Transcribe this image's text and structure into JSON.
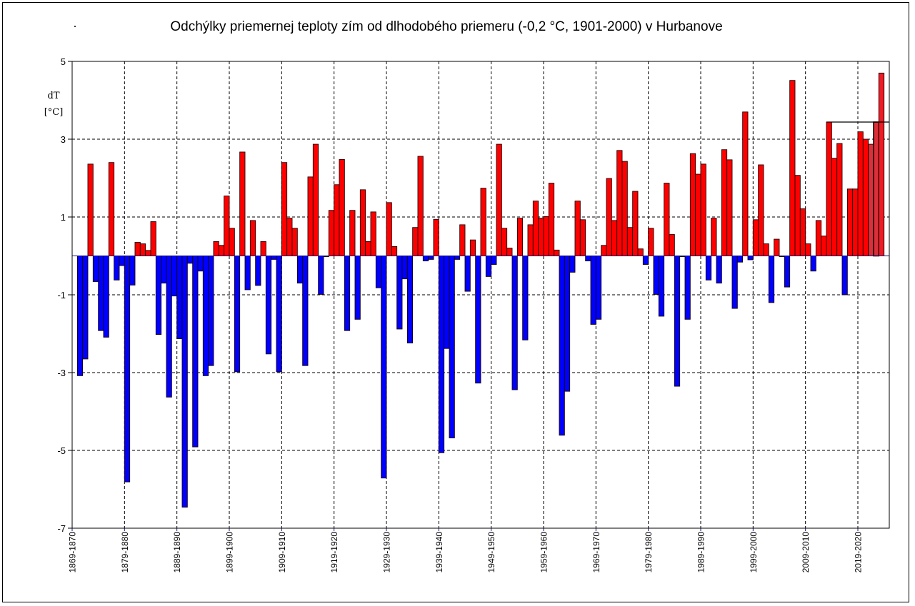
{
  "chart_data": {
    "type": "bar",
    "title": "Odchýlky priemernej teploty zím od dlhodobého priemeru (-0,2 °C, 1901-2000) v Hurbanove",
    "ylabel": "dT",
    "yunit": "[°C]",
    "xlabel": "",
    "ylim": [
      -7,
      5
    ],
    "yticks": [
      5,
      3,
      1,
      -1,
      -3,
      -5,
      -7
    ],
    "ytick_labels": [
      "5",
      "3",
      "1",
      "-1",
      "-3",
      "-5",
      "-7"
    ],
    "grid": true,
    "xtick_labels": [
      "1869-1870",
      "1879-1880",
      "1889-1890",
      "1899-1900",
      "1909-1910",
      "1919-1920",
      "1929-1930",
      "1939-1940",
      "1949-1950",
      "1959-1960",
      "1969-1970",
      "1979-1980",
      "1989-1990",
      "1999-2000",
      "2009-2010",
      "2019-2020"
    ],
    "first_winter_start_year": 1869,
    "colors": {
      "positive": "#ff0000",
      "negative": "#0000ff",
      "highlight": "#d9303a",
      "latest": "#ee1c25"
    },
    "reference_line_value": 3.44,
    "values": [
      -3.08,
      -2.65,
      2.36,
      -0.66,
      -1.92,
      -2.09,
      2.4,
      -0.62,
      -0.25,
      -5.81,
      -0.75,
      0.35,
      0.31,
      0.14,
      0.88,
      -2.02,
      -0.7,
      -3.63,
      -1.03,
      -2.13,
      -6.46,
      -0.19,
      -4.91,
      -0.39,
      -3.08,
      -2.82,
      0.37,
      0.27,
      1.54,
      0.71,
      -2.98,
      2.67,
      -0.87,
      0.91,
      -0.76,
      0.37,
      -2.52,
      -0.09,
      -2.98,
      2.4,
      0.97,
      0.71,
      -0.7,
      -2.82,
      2.03,
      2.87,
      -0.99,
      -0.02,
      1.17,
      1.83,
      2.48,
      -1.92,
      1.17,
      -1.63,
      1.7,
      0.37,
      1.13,
      -0.82,
      -5.71,
      1.37,
      0.24,
      -1.88,
      -0.59,
      -2.24,
      0.73,
      2.56,
      -0.13,
      -0.09,
      0.94,
      -5.06,
      -2.38,
      -4.68,
      -0.09,
      0.8,
      -0.91,
      0.41,
      -3.27,
      1.74,
      -0.53,
      -0.22,
      2.87,
      0.71,
      0.2,
      -3.44,
      0.97,
      -2.16,
      0.8,
      1.41,
      0.97,
      1.01,
      1.87,
      0.15,
      -4.61,
      -3.48,
      -0.42,
      1.41,
      0.93,
      -0.13,
      -1.76,
      -1.63,
      0.27,
      1.99,
      0.91,
      2.71,
      2.43,
      0.73,
      1.66,
      0.18,
      -0.22,
      0.71,
      -0.99,
      -1.55,
      1.87,
      0.55,
      -3.35,
      -0.02,
      -1.63,
      2.63,
      2.1,
      2.36,
      -0.62,
      0.97,
      -0.7,
      2.73,
      2.47,
      -1.35,
      -0.16,
      3.7,
      -0.1,
      0.93,
      2.34,
      0.31,
      -1.2,
      0.43,
      -0.02,
      -0.8,
      4.51,
      2.07,
      1.21,
      0.31,
      -0.39,
      0.91,
      0.51,
      3.44,
      2.51,
      2.89,
      -1.0,
      1.72,
      1.72,
      3.19,
      3.0,
      2.87,
      3.44,
      4.7
    ]
  }
}
